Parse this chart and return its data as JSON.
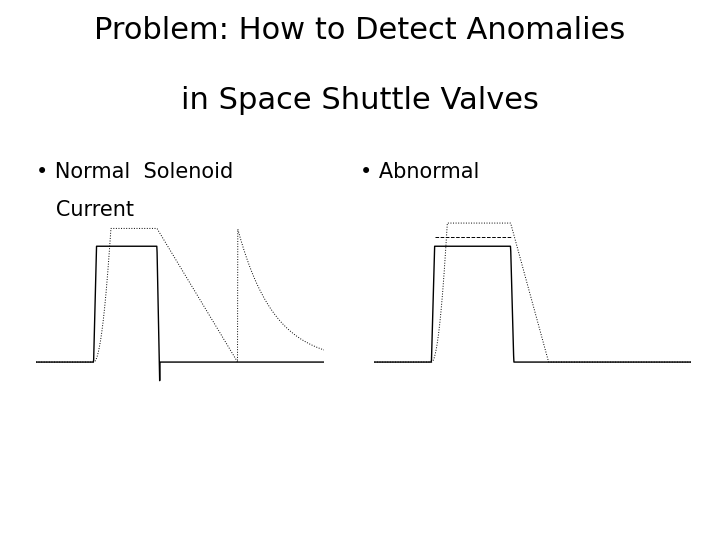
{
  "title_line1": "Problem: How to Detect Anomalies",
  "title_line2": "in Space Shuttle Valves",
  "title_fontsize": 22,
  "bullet_normal_line1": "• Normal  Solenoid",
  "bullet_normal_line2": "   Current",
  "bullet_abnormal": "• Abnormal",
  "bullet_fontsize": 15,
  "bg_color": "#ffffff",
  "plot_bg_color": "#d8d8d8",
  "line_color": "#000000"
}
